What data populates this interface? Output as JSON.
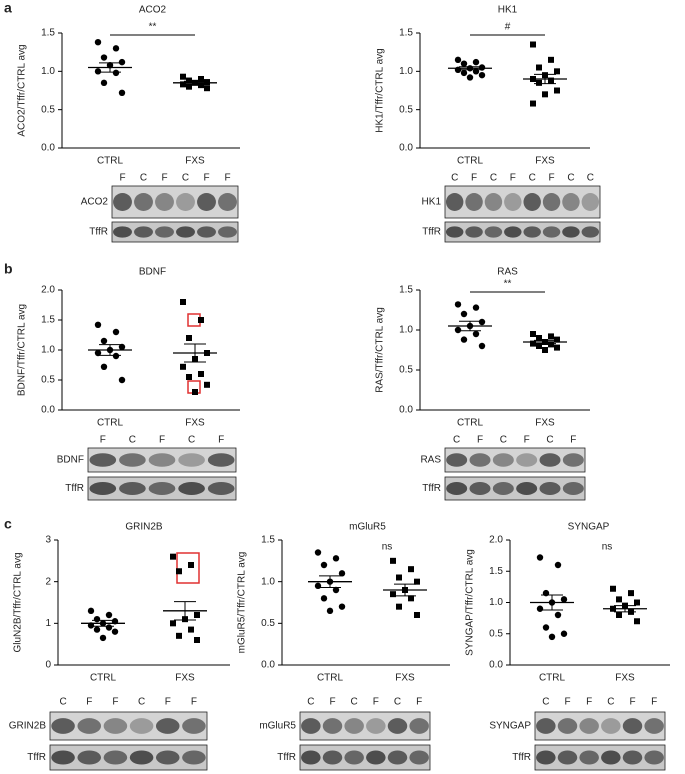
{
  "panels": [
    "a",
    "b",
    "c"
  ],
  "chart_data": [
    {
      "type": "dotplot",
      "title": "ACO2",
      "ylabel": "ACO2/Tffr/CTRL avg",
      "ylim": [
        0,
        1.5
      ],
      "yticks": [
        {
          "value": 0,
          "label": "0.0"
        },
        0.5,
        {
          "value": 1,
          "label": "1.0"
        },
        1.5
      ],
      "annotation": "**",
      "bracket": true,
      "series": [
        {
          "name": "CTRL",
          "marker": "circle",
          "color": "#000000",
          "values": [
            1.38,
            1.3,
            1.18,
            1.12,
            1.08,
            1.0,
            0.98,
            0.85,
            0.72
          ],
          "mean": 1.05,
          "sem": 0.06
        },
        {
          "name": "FXS",
          "marker": "square",
          "color": "#000000",
          "values": [
            0.93,
            0.9,
            0.88,
            0.86,
            0.85,
            0.83,
            0.82,
            0.8,
            0.78
          ],
          "mean": 0.85,
          "sem": 0.02
        }
      ]
    },
    {
      "type": "dotplot",
      "title": "HK1",
      "ylabel": "HK1/Tffr/CTRL avg",
      "ylim": [
        0,
        1.5
      ],
      "yticks": [
        {
          "value": 0,
          "label": "0.0"
        },
        0.5,
        {
          "value": 1,
          "label": "1.0"
        },
        1.5
      ],
      "annotation": "#",
      "bracket": true,
      "series": [
        {
          "name": "CTRL",
          "marker": "circle",
          "color": "#000000",
          "values": [
            1.15,
            1.12,
            1.1,
            1.05,
            1.04,
            1.02,
            1.0,
            0.98,
            0.95,
            0.92
          ],
          "mean": 1.04,
          "sem": 0.02
        },
        {
          "name": "FXS",
          "marker": "square",
          "color": "#000000",
          "values": [
            1.35,
            1.15,
            1.05,
            1.0,
            0.95,
            0.9,
            0.88,
            0.85,
            0.75,
            0.7,
            0.58
          ],
          "mean": 0.9,
          "sem": 0.06
        }
      ]
    },
    {
      "type": "dotplot",
      "title": "BDNF",
      "ylabel": "BDNF/Tffr/CTRL avg",
      "ylim": [
        0,
        2
      ],
      "yticks": [
        {
          "value": 0,
          "label": "0.0"
        },
        0.5,
        {
          "value": 1,
          "label": "1.0"
        },
        1.5,
        {
          "value": 2,
          "label": "2.0"
        }
      ],
      "series": [
        {
          "name": "CTRL",
          "marker": "circle",
          "color": "#000000",
          "values": [
            1.42,
            1.3,
            1.15,
            1.05,
            1.0,
            0.95,
            0.9,
            0.72,
            0.5
          ],
          "mean": 1.0,
          "sem": 0.09
        },
        {
          "name": "FXS",
          "marker": "square",
          "color": "#000000",
          "values": [
            1.8,
            1.5,
            1.2,
            0.95,
            0.85,
            0.72,
            0.6,
            0.55,
            0.42,
            0.3
          ],
          "mean": 0.95,
          "sem": 0.15
        }
      ]
    },
    {
      "type": "dotplot",
      "title": "RAS",
      "ylabel": "RAS/Tffr/CTRL avg",
      "ylim": [
        0,
        1.5
      ],
      "yticks": [
        {
          "value": 0,
          "label": "0.0"
        },
        0.5,
        {
          "value": 1,
          "label": "1.0"
        },
        1.5
      ],
      "annotation": "**",
      "bracket": true,
      "series": [
        {
          "name": "CTRL",
          "marker": "circle",
          "color": "#000000",
          "values": [
            1.32,
            1.28,
            1.2,
            1.1,
            1.05,
            1.0,
            0.95,
            0.88,
            0.8
          ],
          "mean": 1.05,
          "sem": 0.06
        },
        {
          "name": "FXS",
          "marker": "square",
          "color": "#000000",
          "values": [
            0.95,
            0.92,
            0.9,
            0.88,
            0.85,
            0.83,
            0.82,
            0.8,
            0.78,
            0.75
          ],
          "mean": 0.85,
          "sem": 0.02
        }
      ]
    },
    {
      "type": "dotplot",
      "title": "GRIN2B",
      "ylabel": "GluN2B/Tffr/CTRL avg",
      "ylim": [
        0,
        3
      ],
      "yticks": [
        0,
        1,
        2,
        3
      ],
      "series": [
        {
          "name": "CTRL",
          "marker": "circle",
          "color": "#000000",
          "values": [
            1.3,
            1.2,
            1.1,
            1.05,
            1.0,
            0.95,
            0.9,
            0.85,
            0.8,
            0.65
          ],
          "mean": 1.0,
          "sem": 0.07
        },
        {
          "name": "FXS",
          "marker": "square",
          "color": "#000000",
          "values": [
            2.6,
            2.4,
            2.25,
            1.2,
            1.1,
            1.0,
            0.85,
            0.7,
            0.6
          ],
          "mean": 1.3,
          "sem": 0.22
        }
      ]
    },
    {
      "type": "dotplot",
      "title": "mGluR5",
      "ylabel": "mGluR5/Tffr/CTRL avg",
      "ylim": [
        0,
        1.5
      ],
      "yticks": [
        {
          "value": 0,
          "label": "0.0"
        },
        0.5,
        {
          "value": 1,
          "label": "1.0"
        },
        1.5
      ],
      "annotation": "ns",
      "bracket": false,
      "series": [
        {
          "name": "CTRL",
          "marker": "circle",
          "color": "#000000",
          "values": [
            1.35,
            1.28,
            1.2,
            1.1,
            1.0,
            0.95,
            0.9,
            0.8,
            0.7,
            0.65
          ],
          "mean": 1.0,
          "sem": 0.07
        },
        {
          "name": "FXS",
          "marker": "square",
          "color": "#000000",
          "values": [
            1.25,
            1.15,
            1.05,
            1.0,
            0.9,
            0.85,
            0.8,
            0.7,
            0.6
          ],
          "mean": 0.9,
          "sem": 0.07
        }
      ]
    },
    {
      "type": "dotplot",
      "title": "SYNGAP",
      "ylabel": "SYNGAP/Tffr/CTRL avg",
      "ylim": [
        0,
        2
      ],
      "yticks": [
        {
          "value": 0,
          "label": "0.0"
        },
        0.5,
        {
          "value": 1,
          "label": "1.0"
        },
        1.5,
        {
          "value": 2,
          "label": "2.0"
        }
      ],
      "annotation": "ns",
      "bracket": false,
      "series": [
        {
          "name": "CTRL",
          "marker": "circle",
          "color": "#000000",
          "values": [
            1.72,
            1.6,
            1.15,
            1.05,
            1.0,
            0.9,
            0.8,
            0.6,
            0.5,
            0.45
          ],
          "mean": 1.0,
          "sem": 0.12
        },
        {
          "name": "FXS",
          "marker": "square",
          "color": "#000000",
          "values": [
            1.22,
            1.15,
            1.05,
            1.0,
            0.95,
            0.9,
            0.85,
            0.8,
            0.7
          ],
          "mean": 0.9,
          "sem": 0.05
        }
      ]
    }
  ],
  "blots": [
    {
      "lanes": [
        "F",
        "C",
        "F",
        "C",
        "F",
        "F"
      ],
      "rows": [
        "ACO2",
        "TffR"
      ]
    },
    {
      "lanes": [
        "C",
        "F",
        "C",
        "F",
        "C",
        "F",
        "C",
        "C"
      ],
      "rows": [
        "HK1",
        "TffR"
      ]
    },
    {
      "lanes": [
        "F",
        "C",
        "F",
        "C",
        "F"
      ],
      "rows": [
        "BDNF",
        "TffR"
      ]
    },
    {
      "lanes": [
        "C",
        "F",
        "C",
        "F",
        "C",
        "F"
      ],
      "rows": [
        "RAS",
        "TffR"
      ]
    },
    {
      "lanes": [
        "C",
        "F",
        "F",
        "C",
        "F",
        "F"
      ],
      "rows": [
        "GRIN2B",
        "TffR"
      ]
    },
    {
      "lanes": [
        "C",
        "F",
        "C",
        "F",
        "C",
        "F"
      ],
      "rows": [
        "mGluR5",
        "TffR"
      ]
    },
    {
      "lanes": [
        "C",
        "F",
        "F",
        "C",
        "F",
        "F"
      ],
      "rows": [
        "SYNGAP",
        "TffR"
      ]
    }
  ]
}
